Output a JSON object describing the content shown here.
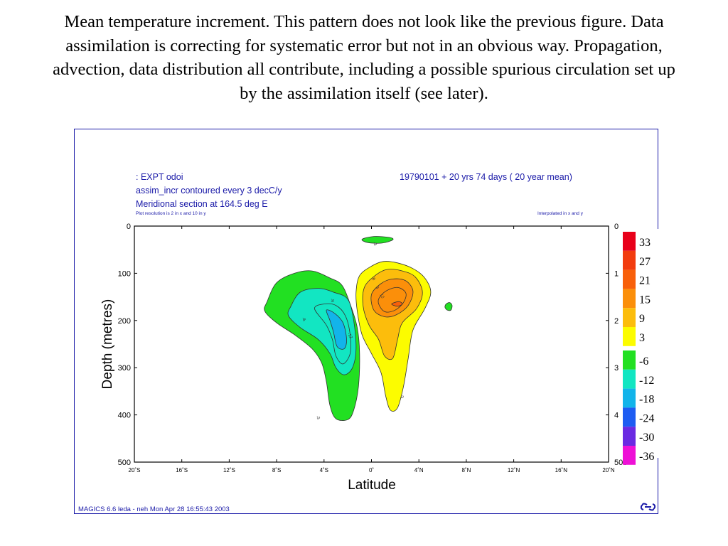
{
  "caption": "Mean temperature increment.  This pattern does not look like the previous figure.  Data assimilation is correcting for systematic error but not in an obvious way.  Propagation, advection, data distribution all contribute, including a possible spurious circulation set up by the assimilation itself (see later).",
  "header": {
    "experiment": ": EXPT odoi",
    "period": "19790101 + 20 yrs 74 days ( 20 year mean)",
    "field": "assim_incr contoured every 3 decC/y",
    "section": "Meridional section at 164.5 deg E",
    "resolution": "Plot resolution is 2 in x and 10 in y",
    "interp": "Interpolated in x and y"
  },
  "footer": {
    "credit": "MAGICS 6.6 leda - neh Mon Apr 28 16:55:43 2003",
    "logo_icon": "ecmwf-logo-icon"
  },
  "colors": {
    "frame": "#1a1aa8",
    "header_text": "#1a1aa8",
    "contour": "#333333"
  },
  "chart_data": {
    "type": "contour",
    "title": "",
    "xlabel": "Latitude",
    "ylabel": "Depth (metres)",
    "xlim": [
      -20,
      20
    ],
    "ylim": [
      0,
      500
    ],
    "y_inverted": true,
    "x_ticks": [
      -20,
      -16,
      -12,
      -8,
      -4,
      0,
      4,
      8,
      12,
      16,
      20
    ],
    "x_tick_labels": [
      "20˚S",
      "16˚S",
      "12˚S",
      "8˚S",
      "4˚S",
      "0˚",
      "4˚N",
      "8˚N",
      "12˚N",
      "16˚N",
      "20˚N"
    ],
    "y_ticks": [
      0,
      100,
      200,
      300,
      400,
      500
    ],
    "y_tick_labels": [
      "0",
      "100",
      "200",
      "300",
      "400",
      "500"
    ],
    "contour_interval": 3,
    "positive_legend": [
      {
        "label": "33",
        "color": "#e8001a"
      },
      {
        "label": "27",
        "color": "#f23c0f"
      },
      {
        "label": "21",
        "color": "#f8600a"
      },
      {
        "label": "15",
        "color": "#fb8f0a"
      },
      {
        "label": "9",
        "color": "#fcbd0c"
      },
      {
        "label": "3",
        "color": "#fcfc00"
      }
    ],
    "negative_legend": [
      {
        "label": "-6",
        "color": "#22e022"
      },
      {
        "label": "-12",
        "color": "#12e6c2"
      },
      {
        "label": "-18",
        "color": "#12b4ea"
      },
      {
        "label": "-24",
        "color": "#1e5cf2"
      },
      {
        "label": "-30",
        "color": "#6a2ae2"
      },
      {
        "label": "-36",
        "color": "#ee10d6"
      }
    ],
    "regions": [
      {
        "name": "negative-region-3",
        "level": -3,
        "color": "#22e022",
        "label": "-3",
        "label_at": [
          -4.5,
          405
        ],
        "points": [
          [
            -8.8,
            160
          ],
          [
            -8,
            120
          ],
          [
            -6.5,
            100
          ],
          [
            -5,
            95
          ],
          [
            -3.5,
            110
          ],
          [
            -2.5,
            125
          ],
          [
            -1.8,
            165
          ],
          [
            -1.2,
            215
          ],
          [
            -1,
            270
          ],
          [
            -1.1,
            340
          ],
          [
            -1.5,
            390
          ],
          [
            -2,
            410
          ],
          [
            -3,
            408
          ],
          [
            -3.5,
            380
          ],
          [
            -3.8,
            330
          ],
          [
            -4.2,
            290
          ],
          [
            -5,
            260
          ],
          [
            -6.5,
            230
          ],
          [
            -8,
            205
          ],
          [
            -9,
            180
          ]
        ]
      },
      {
        "name": "negative-region-6",
        "level": -6,
        "color": "#12e6c2",
        "label": "-6",
        "label_at": [
          -5.7,
          197
        ],
        "points": [
          [
            -6.8,
            170
          ],
          [
            -6,
            140
          ],
          [
            -4.5,
            132
          ],
          [
            -3.2,
            140
          ],
          [
            -2,
            155
          ],
          [
            -1.5,
            200
          ],
          [
            -1.3,
            260
          ],
          [
            -1.6,
            300
          ],
          [
            -2.3,
            315
          ],
          [
            -3,
            300
          ],
          [
            -3.5,
            270
          ],
          [
            -4.5,
            240
          ],
          [
            -6,
            215
          ],
          [
            -7,
            190
          ]
        ]
      },
      {
        "name": "negative-region-9",
        "level": -9,
        "color": "#12e6c2",
        "label": "-9",
        "label_at": [
          -3.3,
          157
        ],
        "points": [
          [
            -4.8,
            175
          ],
          [
            -4,
            165
          ],
          [
            -3,
            168
          ],
          [
            -2.2,
            190
          ],
          [
            -1.8,
            230
          ],
          [
            -1.8,
            270
          ],
          [
            -2.4,
            292
          ],
          [
            -3,
            275
          ],
          [
            -3.3,
            240
          ],
          [
            -3.8,
            210
          ]
        ]
      },
      {
        "name": "negative-region-12",
        "level": -12,
        "color": "#12b4ea",
        "label": "-12",
        "label_at": [
          -1.8,
          232
        ],
        "points": [
          [
            -3.8,
            178
          ],
          [
            -3.1,
            185
          ],
          [
            -2.4,
            205
          ],
          [
            -2.1,
            240
          ],
          [
            -2.3,
            260
          ],
          [
            -2.9,
            255
          ],
          [
            -3.2,
            225
          ],
          [
            -3.5,
            200
          ]
        ]
      },
      {
        "name": "positive-region-3",
        "level": 3,
        "color": "#fcfc00",
        "label": "3",
        "label_at": [
          2.6,
          362
        ],
        "points": [
          [
            -1,
            105
          ],
          [
            0,
            85
          ],
          [
            1,
            75
          ],
          [
            2.2,
            78
          ],
          [
            3.5,
            90
          ],
          [
            4.5,
            110
          ],
          [
            5,
            140
          ],
          [
            4.5,
            175
          ],
          [
            3.5,
            220
          ],
          [
            3.1,
            280
          ],
          [
            2.7,
            340
          ],
          [
            2.2,
            385
          ],
          [
            1.6,
            390
          ],
          [
            1.2,
            360
          ],
          [
            0.8,
            310
          ],
          [
            0,
            270
          ],
          [
            -0.8,
            230
          ],
          [
            -1.2,
            180
          ],
          [
            -1.3,
            140
          ]
        ]
      },
      {
        "name": "positive-region-6",
        "level": 6,
        "color": "#fcbd0c",
        "label": "6",
        "label_at": [
          0.2,
          112
        ],
        "points": [
          [
            -0.6,
            130
          ],
          [
            0.3,
            105
          ],
          [
            1.3,
            92
          ],
          [
            2.6,
            95
          ],
          [
            3.7,
            108
          ],
          [
            4.3,
            140
          ],
          [
            3.8,
            175
          ],
          [
            2.6,
            205
          ],
          [
            2.2,
            240
          ],
          [
            1.8,
            280
          ],
          [
            1.1,
            275
          ],
          [
            0.6,
            240
          ],
          [
            -0.2,
            210
          ],
          [
            -0.7,
            170
          ]
        ]
      },
      {
        "name": "positive-region-9",
        "level": 9,
        "color": "#fb8f0a",
        "label": "9",
        "label_at": [
          0.5,
          130
        ],
        "points": [
          [
            0,
            145
          ],
          [
            0.8,
            122
          ],
          [
            1.8,
            112
          ],
          [
            2.9,
            116
          ],
          [
            3.5,
            138
          ],
          [
            3.1,
            168
          ],
          [
            2.1,
            188
          ],
          [
            1.1,
            192
          ],
          [
            0.2,
            178
          ]
        ]
      },
      {
        "name": "positive-region-12",
        "level": 12,
        "color": "#fb8f0a",
        "label": "12",
        "label_at": [
          0.9,
          148
        ],
        "points": [
          [
            0.6,
            155
          ],
          [
            1.2,
            138
          ],
          [
            2.2,
            130
          ],
          [
            2.9,
            142
          ],
          [
            2.7,
            162
          ],
          [
            2,
            178
          ],
          [
            1.2,
            182
          ],
          [
            0.7,
            170
          ]
        ]
      },
      {
        "name": "positive-region-15",
        "level": 15,
        "color": "#f8600a",
        "label": "",
        "label_at": [
          2.0,
          165
        ],
        "points": [
          [
            1.7,
            165
          ],
          [
            2.3,
            160
          ],
          [
            2.6,
            165
          ],
          [
            2.2,
            170
          ]
        ]
      },
      {
        "name": "shallow-negative-patch",
        "level": -3,
        "color": "#22e022",
        "label": "-3",
        "label_at": [
          0.3,
          37
        ],
        "points": [
          [
            -0.8,
            28
          ],
          [
            0.2,
            22
          ],
          [
            1.5,
            24
          ],
          [
            1.8,
            29
          ],
          [
            0.9,
            36
          ],
          [
            -0.3,
            35
          ]
        ]
      },
      {
        "name": "small-negative-patch",
        "level": -3,
        "color": "#22e022",
        "label": "",
        "label_at": [
          6.5,
          172
        ],
        "points": [
          [
            6.3,
            165
          ],
          [
            6.6,
            162
          ],
          [
            6.8,
            168
          ],
          [
            6.7,
            178
          ],
          [
            6.4,
            178
          ],
          [
            6.2,
            172
          ]
        ]
      }
    ]
  }
}
